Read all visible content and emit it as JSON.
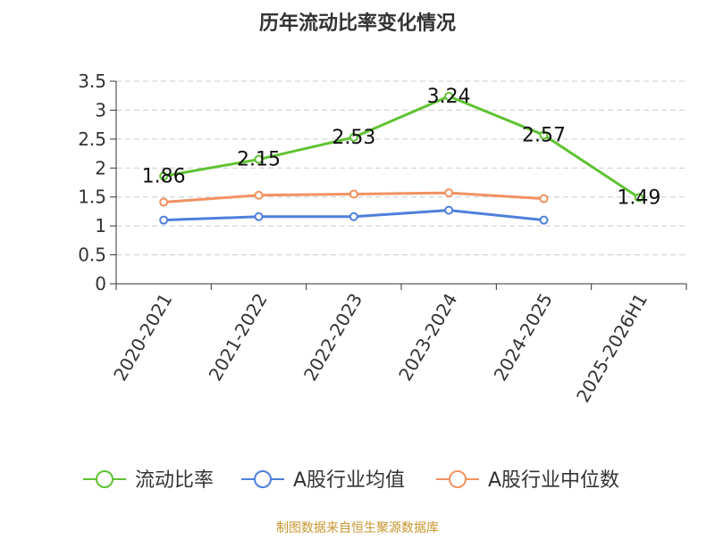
{
  "chart_data": {
    "type": "line",
    "title": "历年流动比率变化情况",
    "categories": [
      "2020-2021",
      "2021-2022",
      "2022-2023",
      "2023-2024",
      "2024-2025",
      "2025-2026H1"
    ],
    "ylim": [
      0,
      3.5
    ],
    "yticks": [
      0,
      0.5,
      1,
      1.5,
      2,
      2.5,
      3,
      3.5
    ],
    "ytick_labels": [
      "0",
      "0.5",
      "1",
      "1.5",
      "2",
      "2.5",
      "3",
      "3.5"
    ],
    "grid": true,
    "legend_position": "bottom",
    "series": [
      {
        "name": "流动比率",
        "color": "#5fc232",
        "values": [
          1.86,
          2.15,
          2.53,
          3.24,
          2.57,
          1.49
        ],
        "data_labels": [
          "1.86",
          "2.15",
          "2.53",
          "3.24",
          "2.57",
          "1.49"
        ]
      },
      {
        "name": "A股行业均值",
        "color": "#4e7fdc",
        "values": [
          1.1,
          1.16,
          1.16,
          1.27,
          1.1,
          null
        ]
      },
      {
        "name": "A股行业中位数",
        "color": "#f29160",
        "values": [
          1.41,
          1.53,
          1.55,
          1.57,
          1.47,
          null
        ]
      }
    ]
  },
  "source_note": "制图数据来自恒生聚源数据库"
}
